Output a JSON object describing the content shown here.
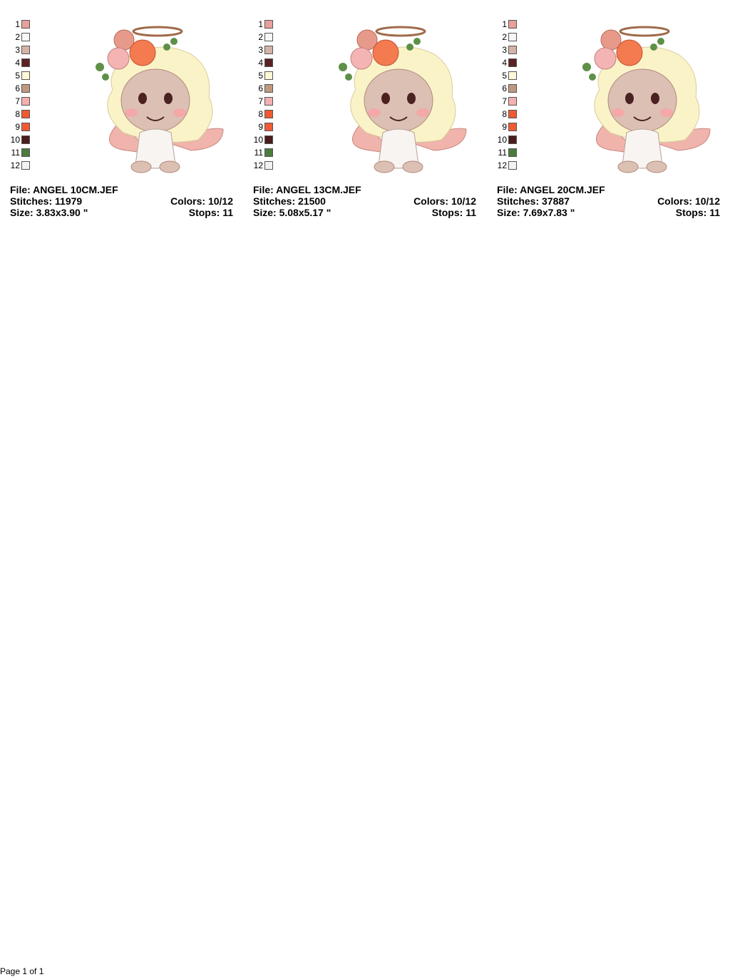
{
  "panels": [
    {
      "swatches": [
        {
          "label": 1,
          "color": "#e8a09a"
        },
        {
          "label": 2,
          "color": "#f6f6f6"
        },
        {
          "label": 3,
          "color": "#d4b4a8"
        },
        {
          "label": 4,
          "color": "#5a2222"
        },
        {
          "label": 5,
          "color": "#fdf8d8"
        },
        {
          "label": 6,
          "color": "#c09880"
        },
        {
          "label": 7,
          "color": "#f4b0b0"
        },
        {
          "label": 8,
          "color": "#f05a30"
        },
        {
          "label": 9,
          "color": "#f25a34"
        },
        {
          "label": 10,
          "color": "#4a1c1c"
        },
        {
          "label": 11,
          "color": "#4c7c3c"
        },
        {
          "label": 12,
          "color": "#f2f2f2"
        }
      ],
      "file": "File: ANGEL 10CM.JEF",
      "stitches": "Stitches: 11979",
      "colors": "Colors: 10/12",
      "size": "Size: 3.83x3.90 \"",
      "stops": "Stops: 11"
    },
    {
      "swatches": [
        {
          "label": 1,
          "color": "#e8a09a"
        },
        {
          "label": 2,
          "color": "#f6f6f6"
        },
        {
          "label": 3,
          "color": "#d4b4a8"
        },
        {
          "label": 4,
          "color": "#5a2222"
        },
        {
          "label": 5,
          "color": "#fdf8d8"
        },
        {
          "label": 6,
          "color": "#c09880"
        },
        {
          "label": 7,
          "color": "#f4b0b0"
        },
        {
          "label": 8,
          "color": "#f05a30"
        },
        {
          "label": 9,
          "color": "#f25a34"
        },
        {
          "label": 10,
          "color": "#4a1c1c"
        },
        {
          "label": 11,
          "color": "#4c7c3c"
        },
        {
          "label": 12,
          "color": "#f2f2f2"
        }
      ],
      "file": "File: ANGEL 13CM.JEF",
      "stitches": "Stitches: 21500",
      "colors": "Colors: 10/12",
      "size": "Size: 5.08x5.17 \"",
      "stops": "Stops: 11"
    },
    {
      "swatches": [
        {
          "label": 1,
          "color": "#e8a09a"
        },
        {
          "label": 2,
          "color": "#f6f6f6"
        },
        {
          "label": 3,
          "color": "#d4b4a8"
        },
        {
          "label": 4,
          "color": "#5a2222"
        },
        {
          "label": 5,
          "color": "#fdf8d8"
        },
        {
          "label": 6,
          "color": "#c09880"
        },
        {
          "label": 7,
          "color": "#f4b0b0"
        },
        {
          "label": 8,
          "color": "#f05a30"
        },
        {
          "label": 9,
          "color": "#f25a34"
        },
        {
          "label": 10,
          "color": "#4a1c1c"
        },
        {
          "label": 11,
          "color": "#4c7c3c"
        },
        {
          "label": 12,
          "color": "#f2f2f2"
        }
      ],
      "file": "File: ANGEL 20CM.JEF",
      "stitches": "Stitches: 37887",
      "colors": "Colors: 10/12",
      "size": "Size: 7.69x7.83 \"",
      "stops": "Stops: 11"
    }
  ],
  "footer": "Page 1 of 1"
}
